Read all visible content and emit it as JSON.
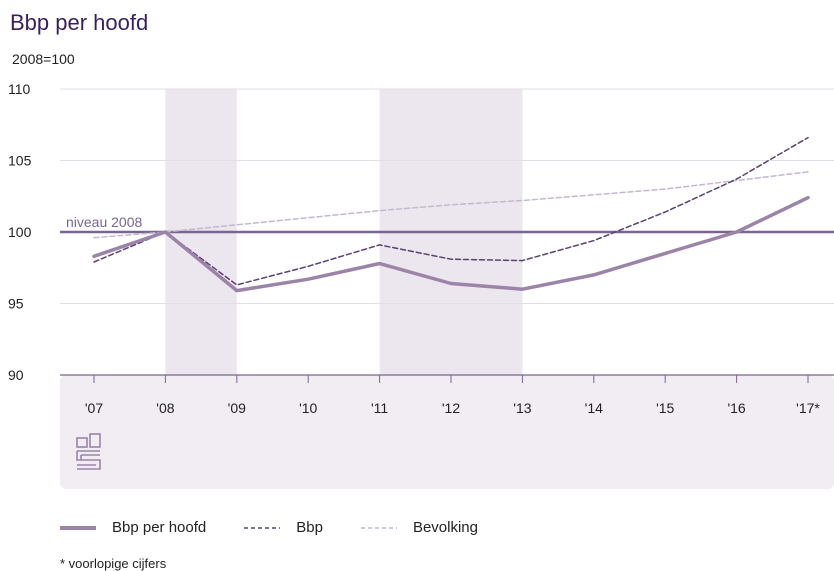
{
  "chart_data": {
    "type": "line",
    "title": "Bbp per hoofd",
    "ylabel": "2008=100",
    "xlabel": "",
    "categories": [
      "'07",
      "'08",
      "'09",
      "'10",
      "'11",
      "'12",
      "'13",
      "'14",
      "'15",
      "'16",
      "'17*"
    ],
    "ylim": [
      90,
      110
    ],
    "yticks": [
      90,
      95,
      100,
      105,
      110
    ],
    "grid": true,
    "legend_placement": "bottom-left",
    "shaded_periods": [
      [
        "'08",
        "'09"
      ],
      [
        "'11",
        "'13"
      ]
    ],
    "reference_line": {
      "value": 100,
      "label": "niveau 2008"
    },
    "series": [
      {
        "name": "Bbp per hoofd",
        "style": "solid-thick",
        "color": "#9b84a8",
        "values": [
          98.3,
          100,
          95.9,
          96.7,
          97.8,
          96.4,
          96.0,
          97.0,
          98.5,
          100.0,
          102.4
        ]
      },
      {
        "name": "Bbp",
        "style": "dashed",
        "color": "#5a4170",
        "values": [
          97.9,
          100,
          96.3,
          97.6,
          99.1,
          98.1,
          98.0,
          99.4,
          101.4,
          103.7,
          106.6
        ]
      },
      {
        "name": "Bevolking",
        "style": "dashed-light",
        "color": "#c4b8d1",
        "values": [
          99.6,
          100,
          100.5,
          101.0,
          101.5,
          101.9,
          102.2,
          102.6,
          103.0,
          103.6,
          104.2
        ]
      }
    ]
  },
  "footnote": "* voorlopige cijfers",
  "colors": {
    "accent": "#7a6491",
    "shade": "#ece6ee",
    "panel": "#f1edf3"
  },
  "logo_icon": "cbs-logo-icon"
}
